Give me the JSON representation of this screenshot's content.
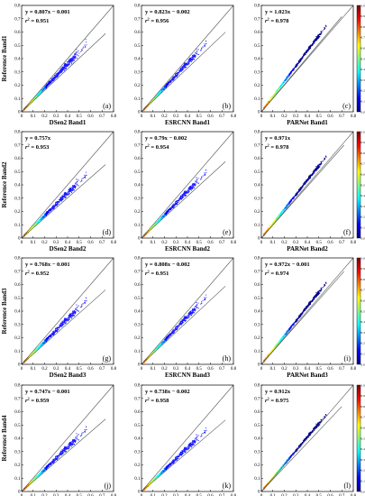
{
  "figure": {
    "colorbar_ticks": [
      "1.0",
      "0.9",
      "0.8",
      "0.7",
      "0.6",
      "0.5",
      "0.4",
      "0.3",
      "0.2",
      "0.1",
      "0.0"
    ],
    "colormap": [
      "#00008f",
      "#0000ff",
      "#0080ff",
      "#00ffff",
      "#80ff80",
      "#ffff00",
      "#ff8000",
      "#ff0000",
      "#800000"
    ],
    "point_color_sparse": "#1a1aff"
  },
  "chart_data": [
    {
      "type": "scatter",
      "panel": "(a)",
      "xlabel": "DSen2 Band1",
      "ylabel": "Reference Band1",
      "equation": "y = 0.807x − 0.001",
      "r2_label": "r",
      "r2_value": " = 0.951",
      "slope": 0.807,
      "intercept": -0.001,
      "r2": 0.951,
      "xlim": [
        0,
        0.8
      ],
      "ylim": [
        0,
        0.8
      ],
      "xticks": [
        "0",
        "0.1",
        "0.2",
        "0.3",
        "0.4",
        "0.5",
        "0.6",
        "0.7",
        "0.8"
      ],
      "yticks": [
        "0",
        "0.1",
        "0.2",
        "0.3",
        "0.4",
        "0.5",
        "0.6",
        "0.7",
        "0.8"
      ],
      "fit_line_to_x": 0.73,
      "spread": 0.22
    },
    {
      "type": "scatter",
      "panel": "(b)",
      "xlabel": "ESRCNN Band1",
      "ylabel": "",
      "equation": "y = 0.823x − 0.002",
      "r2_label": "r",
      "r2_value": " = 0.956",
      "slope": 0.823,
      "intercept": -0.002,
      "r2": 0.956,
      "xlim": [
        0,
        0.8
      ],
      "ylim": [
        0,
        0.8
      ],
      "xticks": [
        "0",
        "0.1",
        "0.2",
        "0.3",
        "0.4",
        "0.5",
        "0.6",
        "0.7",
        "0.8"
      ],
      "yticks": [
        "0",
        "0.1",
        "0.2",
        "0.3",
        "0.4",
        "0.5",
        "0.6",
        "0.7",
        "0.8"
      ],
      "fit_line_to_x": 0.73,
      "spread": 0.2
    },
    {
      "type": "scatter",
      "panel": "(c)",
      "xlabel": "PARNet Band1",
      "ylabel": "",
      "equation": "y = 1.023x",
      "r2_label": "r",
      "r2_value": " = 0.978",
      "slope": 1.023,
      "intercept": 0,
      "r2": 0.978,
      "xlim": [
        0,
        0.8
      ],
      "ylim": [
        0,
        0.8
      ],
      "xticks": [
        "0",
        "0.1",
        "0.2",
        "0.3",
        "0.4",
        "0.5",
        "0.6",
        "0.7",
        "0.8"
      ],
      "yticks": [
        "0",
        "0.1",
        "0.2",
        "0.3",
        "0.4",
        "0.5",
        "0.6",
        "0.7",
        "0.8"
      ],
      "fit_line_to_x": 0.7,
      "spread": 0.1,
      "dense": true
    },
    {
      "type": "scatter",
      "panel": "(d)",
      "xlabel": "DSen2 Band2",
      "ylabel": "Reference Band2",
      "equation": "y = 0.757x",
      "r2_label": "r",
      "r2_value": " = 0.953",
      "slope": 0.757,
      "intercept": 0,
      "r2": 0.953,
      "xlim": [
        0,
        0.8
      ],
      "ylim": [
        0,
        0.8
      ],
      "xticks": [
        "0",
        "0.1",
        "0.2",
        "0.3",
        "0.4",
        "0.5",
        "0.6",
        "0.7",
        "0.8"
      ],
      "yticks": [
        "0",
        "0.1",
        "0.2",
        "0.3",
        "0.4",
        "0.5",
        "0.6",
        "0.7",
        "0.8"
      ],
      "fit_line_to_x": 0.73,
      "spread": 0.22
    },
    {
      "type": "scatter",
      "panel": "(e)",
      "xlabel": "ESRCNN Band2",
      "ylabel": "",
      "equation": "y = 0.79x − 0.002",
      "r2_label": "r",
      "r2_value": " = 0.954",
      "slope": 0.79,
      "intercept": -0.002,
      "r2": 0.954,
      "xlim": [
        0,
        0.8
      ],
      "ylim": [
        0,
        0.8
      ],
      "xticks": [
        "0",
        "0.1",
        "0.2",
        "0.3",
        "0.4",
        "0.5",
        "0.6",
        "0.7",
        "0.8"
      ],
      "yticks": [
        "0",
        "0.1",
        "0.2",
        "0.3",
        "0.4",
        "0.5",
        "0.6",
        "0.7",
        "0.8"
      ],
      "fit_line_to_x": 0.73,
      "spread": 0.2
    },
    {
      "type": "scatter",
      "panel": "(f)",
      "xlabel": "PARNet Band2",
      "ylabel": "",
      "equation": "y = 0.971x",
      "r2_label": "r",
      "r2_value": " = 0.978",
      "slope": 0.971,
      "intercept": 0,
      "r2": 0.978,
      "xlim": [
        0,
        0.8
      ],
      "ylim": [
        0,
        0.8
      ],
      "xticks": [
        "0",
        "0.1",
        "0.2",
        "0.3",
        "0.4",
        "0.5",
        "0.6",
        "0.7",
        "0.8"
      ],
      "yticks": [
        "0",
        "0.1",
        "0.2",
        "0.3",
        "0.4",
        "0.5",
        "0.6",
        "0.7",
        "0.8"
      ],
      "fit_line_to_x": 0.72,
      "spread": 0.1,
      "dense": true
    },
    {
      "type": "scatter",
      "panel": "(g)",
      "xlabel": "DSen2 Band3",
      "ylabel": "Reference Band3",
      "equation": "y = 0.768x − 0.001",
      "r2_label": "r",
      "r2_value": " = 0.952",
      "slope": 0.768,
      "intercept": -0.001,
      "r2": 0.952,
      "xlim": [
        0,
        0.8
      ],
      "ylim": [
        0,
        0.8
      ],
      "xticks": [
        "0",
        "0.1",
        "0.2",
        "0.3",
        "0.4",
        "0.5",
        "0.6",
        "0.7",
        "0.8"
      ],
      "yticks": [
        "0",
        "0.1",
        "0.2",
        "0.3",
        "0.4",
        "0.5",
        "0.6",
        "0.7",
        "0.8"
      ],
      "fit_line_to_x": 0.73,
      "spread": 0.22
    },
    {
      "type": "scatter",
      "panel": "(h)",
      "xlabel": "ESRCNN Band3",
      "ylabel": "",
      "equation": "y = 0.808x − 0.002",
      "r2_label": "r",
      "r2_value": " = 0.951",
      "slope": 0.808,
      "intercept": -0.002,
      "r2": 0.951,
      "xlim": [
        0,
        0.8
      ],
      "ylim": [
        0,
        0.8
      ],
      "xticks": [
        "0",
        "0.1",
        "0.2",
        "0.3",
        "0.4",
        "0.5",
        "0.6",
        "0.7",
        "0.8"
      ],
      "yticks": [
        "0",
        "0.1",
        "0.2",
        "0.3",
        "0.4",
        "0.5",
        "0.6",
        "0.7",
        "0.8"
      ],
      "fit_line_to_x": 0.73,
      "spread": 0.2
    },
    {
      "type": "scatter",
      "panel": "(i)",
      "xlabel": "PARNet Band3",
      "ylabel": "",
      "equation": "y = 0.972x − 0.001",
      "r2_label": "r",
      "r2_value": " = 0.974",
      "slope": 0.972,
      "intercept": -0.001,
      "r2": 0.974,
      "xlim": [
        0,
        0.8
      ],
      "ylim": [
        0,
        0.8
      ],
      "xticks": [
        "0",
        "0.1",
        "0.2",
        "0.3",
        "0.4",
        "0.5",
        "0.6",
        "0.7",
        "0.8"
      ],
      "yticks": [
        "0",
        "0.1",
        "0.2",
        "0.3",
        "0.4",
        "0.5",
        "0.6",
        "0.7",
        "0.8"
      ],
      "fit_line_to_x": 0.72,
      "spread": 0.1,
      "dense": true
    },
    {
      "type": "scatter",
      "panel": "(j)",
      "xlabel": "DSen2 Band4",
      "ylabel": "Reference Band4",
      "equation": "y = 0.747x − 0.001",
      "r2_label": "r",
      "r2_value": " = 0.959",
      "slope": 0.747,
      "intercept": -0.001,
      "r2": 0.959,
      "xlim": [
        0,
        0.8
      ],
      "ylim": [
        0,
        0.8
      ],
      "xticks": [
        "0",
        "0.1",
        "0.2",
        "0.3",
        "0.4",
        "0.5",
        "0.6",
        "0.7",
        "0.8"
      ],
      "yticks": [
        "0",
        "0.1",
        "0.2",
        "0.3",
        "0.4",
        "0.5",
        "0.6",
        "0.7",
        "0.8"
      ],
      "fit_line_to_x": 0.73,
      "spread": 0.22
    },
    {
      "type": "scatter",
      "panel": "(k)",
      "xlabel": "ESRCNN Band4",
      "ylabel": "",
      "equation": "y = 0.738x − 0.002",
      "r2_label": "r",
      "r2_value": " = 0.958",
      "slope": 0.738,
      "intercept": -0.002,
      "r2": 0.958,
      "xlim": [
        0,
        0.8
      ],
      "ylim": [
        0,
        0.8
      ],
      "xticks": [
        "0",
        "0.1",
        "0.2",
        "0.3",
        "0.4",
        "0.5",
        "0.6",
        "0.7",
        "0.8"
      ],
      "yticks": [
        "0",
        "0.1",
        "0.2",
        "0.3",
        "0.4",
        "0.5",
        "0.6",
        "0.7",
        "0.8"
      ],
      "fit_line_to_x": 0.73,
      "spread": 0.2
    },
    {
      "type": "scatter",
      "panel": "(l)",
      "xlabel": "PARNet Band4",
      "ylabel": "",
      "equation": "y = 0.912x",
      "r2_label": "r",
      "r2_value": " = 0.975",
      "slope": 0.912,
      "intercept": 0,
      "r2": 0.975,
      "xlim": [
        0,
        0.8
      ],
      "ylim": [
        0,
        0.8
      ],
      "xticks": [
        "0",
        "0.1",
        "0.2",
        "0.3",
        "0.4",
        "0.5",
        "0.6",
        "0.7",
        "0.8"
      ],
      "yticks": [
        "0",
        "0.1",
        "0.2",
        "0.3",
        "0.4",
        "0.5",
        "0.6",
        "0.7",
        "0.8"
      ],
      "fit_line_to_x": 0.7,
      "spread": 0.1,
      "dense": true
    }
  ]
}
